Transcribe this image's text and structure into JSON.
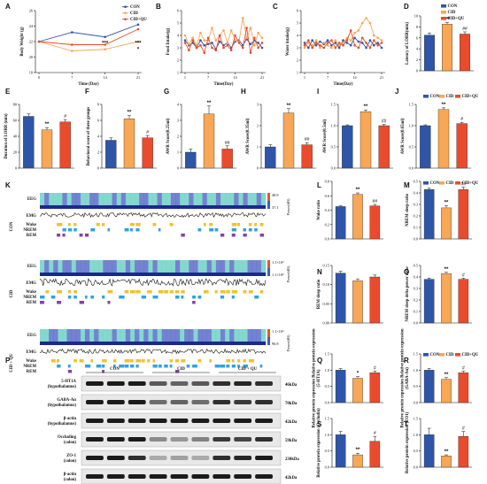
{
  "colors": {
    "CON": "#2e55a7",
    "CID": "#f7a755",
    "CIDQU": "#ea4b2c"
  },
  "legend": [
    "CON",
    "CID",
    "CID+QU"
  ],
  "chart_data": [
    {
      "panel": "A",
      "type": "line",
      "xlabel": "Time (Day)",
      "ylabel": "Body Weight (g)",
      "x": [
        0,
        7,
        14,
        21
      ],
      "xticks": [
        "0",
        "7",
        "14",
        "21"
      ],
      "ylim": [
        18,
        26
      ],
      "yticks": [
        "18",
        "20",
        "22",
        "24",
        "26"
      ],
      "series": [
        {
          "name": "CON",
          "values": [
            22.0,
            23.2,
            22.6,
            24.2
          ]
        },
        {
          "name": "CID",
          "values": [
            22.0,
            20.8,
            21.0,
            22.0
          ]
        },
        {
          "name": "CID+QU",
          "values": [
            22.0,
            21.6,
            21.6,
            23.6
          ]
        }
      ],
      "annotations": [
        {
          "x": 14,
          "text": "***"
        },
        {
          "x": 21,
          "text": "***"
        },
        {
          "x": 21,
          "text": "*"
        }
      ]
    },
    {
      "panel": "B",
      "type": "line",
      "xlabel": "Time(Day)",
      "ylabel": "Food Intake(g)",
      "ylim": [
        1,
        6
      ],
      "yticks": [
        "1",
        "2",
        "3",
        "4",
        "5",
        "6"
      ],
      "xticks": [
        "1",
        "7",
        "14",
        "21"
      ],
      "x": [
        1,
        2,
        3,
        4,
        5,
        6,
        7,
        8,
        9,
        10,
        11,
        12,
        13,
        14,
        15,
        16,
        17,
        18,
        19,
        20,
        21
      ],
      "series": [
        {
          "name": "CON",
          "values": [
            3.6,
            3.2,
            3.4,
            3.0,
            3.6,
            3.2,
            3.3,
            3.4,
            2.9,
            3.5,
            3.2,
            3.4,
            3.0,
            3.5,
            3.6,
            3.2,
            3.7,
            3.3,
            3.6,
            3.4,
            3.0
          ]
        },
        {
          "name": "CID",
          "values": [
            4.0,
            3.3,
            3.8,
            3.2,
            4.2,
            3.6,
            3.6,
            4.6,
            3.6,
            4.0,
            4.4,
            3.4,
            4.4,
            3.6,
            3.5,
            5.4,
            3.8,
            4.6,
            3.2,
            4.2,
            3.8
          ]
        },
        {
          "name": "CID+QU",
          "values": [
            3.4,
            2.8,
            3.6,
            3.0,
            3.2,
            2.6,
            3.8,
            3.0,
            2.8,
            4.0,
            3.0,
            3.2,
            2.8,
            4.0,
            3.4,
            3.0,
            4.6,
            2.6,
            3.8,
            3.0,
            3.4
          ]
        }
      ]
    },
    {
      "panel": "C",
      "type": "line",
      "xlabel": "Time(Day)",
      "ylabel": "Water intake(g)",
      "ylim": [
        1,
        6
      ],
      "yticks": [
        "1",
        "2",
        "3",
        "4",
        "5",
        "6"
      ],
      "xticks": [
        "1",
        "7",
        "14",
        "21"
      ],
      "x": [
        1,
        2,
        3,
        4,
        5,
        6,
        7,
        8,
        9,
        10,
        11,
        12,
        13,
        14,
        15,
        16,
        17,
        18,
        19,
        20,
        21
      ],
      "series": [
        {
          "name": "CON",
          "values": [
            3.4,
            3.0,
            3.6,
            3.2,
            3.5,
            3.3,
            3.6,
            3.2,
            3.4,
            3.0,
            3.6,
            3.4,
            3.2,
            3.8,
            3.5,
            3.4,
            3.0,
            3.6,
            3.2,
            3.4,
            3.0
          ]
        },
        {
          "name": "CID",
          "values": [
            3.0,
            3.4,
            3.2,
            3.6,
            3.0,
            3.4,
            3.2,
            3.0,
            3.6,
            3.2,
            3.4,
            3.8,
            3.6,
            4.2,
            4.4,
            5.0,
            5.4,
            5.0,
            4.0,
            3.8,
            3.6
          ]
        },
        {
          "name": "CID+QU",
          "values": [
            3.2,
            3.6,
            3.0,
            3.4,
            3.2,
            3.0,
            3.4,
            3.6,
            3.0,
            3.4,
            3.2,
            3.6,
            4.4,
            3.2,
            3.0,
            3.8,
            3.4,
            3.0,
            3.6,
            3.2,
            3.4
          ]
        }
      ]
    },
    {
      "panel": "D",
      "type": "bar",
      "ylabel": "Latency of LORR(min)",
      "ylim": [
        0,
        10
      ],
      "yticks": [
        "0",
        "2",
        "4",
        "6",
        "8",
        "10"
      ],
      "categories": [
        "CON",
        "CID",
        "CID+QU"
      ],
      "values": [
        6.5,
        8.5,
        6.7
      ],
      "errors": [
        0.4,
        0.3,
        0.4
      ],
      "sig": [
        "",
        "***",
        "##"
      ]
    },
    {
      "panel": "E",
      "type": "bar",
      "ylabel": "Duration of LORR (min)",
      "ylim": [
        0,
        80
      ],
      "yticks": [
        "0",
        "20",
        "40",
        "60",
        "80"
      ],
      "categories": [
        "CON",
        "CID",
        "CID+QU"
      ],
      "values": [
        65,
        48,
        58
      ],
      "errors": [
        3,
        3,
        3
      ],
      "sig": [
        "",
        "**",
        "#"
      ]
    },
    {
      "panel": "F",
      "type": "bar",
      "ylabel": "Behavioral score of three groups",
      "ylim": [
        0,
        8
      ],
      "yticks": [
        "0",
        "2",
        "4",
        "6",
        "8"
      ],
      "categories": [
        "CON",
        "CID",
        "CID+QU"
      ],
      "values": [
        3.5,
        6.2,
        3.8
      ],
      "errors": [
        0.3,
        0.4,
        0.3
      ],
      "sig": [
        "",
        "**",
        "#"
      ]
    },
    {
      "panel": "G",
      "type": "bar",
      "ylabel": "AWR Score(0.25ml)",
      "ylim": [
        0,
        4
      ],
      "yticks": [
        "0",
        "1",
        "2",
        "3",
        "4"
      ],
      "categories": [
        "CON",
        "CID",
        "CID+QU"
      ],
      "values": [
        1.0,
        3.4,
        1.2
      ],
      "errors": [
        0.2,
        0.5,
        0.2
      ],
      "sig": [
        "",
        "**",
        "##"
      ]
    },
    {
      "panel": "H",
      "type": "bar",
      "ylabel": "AWR Score(0.35ml)",
      "ylim": [
        0,
        3
      ],
      "yticks": [
        "0",
        "1",
        "2",
        "3"
      ],
      "categories": [
        "CON",
        "CID",
        "CID+QU"
      ],
      "values": [
        1.0,
        2.6,
        1.1
      ],
      "errors": [
        0.1,
        0.2,
        0.1
      ],
      "sig": [
        "",
        "**",
        "##"
      ]
    },
    {
      "panel": "I",
      "type": "bar",
      "ylabel": "AWR Score(0.5ml)",
      "ylim": [
        0,
        1.5
      ],
      "yticks": [
        "0.0",
        "0.5",
        "1.0",
        "1.5"
      ],
      "categories": [
        "CON",
        "CID",
        "CID+QU"
      ],
      "values": [
        1.0,
        1.33,
        1.0
      ],
      "errors": [
        0.02,
        0.04,
        0.03
      ],
      "sig": [
        "",
        "**",
        "##"
      ]
    },
    {
      "panel": "J",
      "type": "bar",
      "ylabel": "AWR Score(0.65ml)",
      "ylim": [
        0,
        1.5
      ],
      "yticks": [
        "0.0",
        "0.5",
        "1.0",
        "1.5"
      ],
      "categories": [
        "CON",
        "CID",
        "CID+QU"
      ],
      "values": [
        1.0,
        1.38,
        1.05
      ],
      "errors": [
        0.02,
        0.04,
        0.03
      ],
      "sig": [
        "",
        "**",
        "#"
      ]
    },
    {
      "panel": "L",
      "type": "bar",
      "ylabel": "Wake ratio",
      "ylim": [
        0,
        0.8
      ],
      "yticks": [
        "0.0",
        "0.2",
        "0.4",
        "0.6",
        "0.8"
      ],
      "categories": [
        "CON",
        "CID",
        "CID+QU"
      ],
      "values": [
        0.45,
        0.62,
        0.46
      ],
      "errors": [
        0.01,
        0.02,
        0.02
      ],
      "sig": [
        "",
        "**",
        "##"
      ]
    },
    {
      "panel": "M",
      "type": "bar",
      "ylabel": "NREM sleep ratio",
      "ylim": [
        0,
        0.5
      ],
      "yticks": [
        "0.0",
        "0.1",
        "0.2",
        "0.3",
        "0.4",
        "0.5"
      ],
      "categories": [
        "CON",
        "CID",
        "CID+QU"
      ],
      "values": [
        0.43,
        0.27,
        0.43
      ],
      "errors": [
        0.01,
        0.02,
        0.02
      ],
      "sig": [
        "",
        "**",
        "##"
      ]
    },
    {
      "panel": "N",
      "type": "bar",
      "ylabel": "REM sleep ratio",
      "ylim": [
        0,
        0.15
      ],
      "yticks": [
        "0.00",
        "0.05",
        "0.10",
        "0.15"
      ],
      "categories": [
        "CON",
        "CID",
        "CID+QU"
      ],
      "values": [
        0.13,
        0.11,
        0.12
      ],
      "errors": [
        0.005,
        0.005,
        0.005
      ],
      "sig": [
        "",
        "",
        ""
      ]
    },
    {
      "panel": "O",
      "type": "bar",
      "ylabel": "NREM sleep delta power ratio",
      "ylim": [
        0,
        0.5
      ],
      "yticks": [
        "0.0",
        "0.1",
        "0.2",
        "0.3",
        "0.4",
        "0.5"
      ],
      "categories": [
        "CON",
        "CID",
        "CID+QU"
      ],
      "values": [
        0.38,
        0.43,
        0.38
      ],
      "errors": [
        0.01,
        0.01,
        0.01
      ],
      "sig": [
        "",
        "**",
        "#"
      ]
    },
    {
      "panel": "Q",
      "type": "bar",
      "ylabel": "Relative protein expression Relative protein expression (5-HT1A)",
      "ylim": [
        0,
        1.5
      ],
      "yticks": [
        "0.0",
        "0.5",
        "1.0",
        "1.5"
      ],
      "categories": [
        "CON",
        "CID",
        "CID+QU"
      ],
      "values": [
        1.0,
        0.75,
        0.92
      ],
      "errors": [
        0.05,
        0.05,
        0.05
      ],
      "sig": [
        "",
        "*",
        "#"
      ]
    },
    {
      "panel": "R",
      "type": "bar",
      "ylabel": "Relative protein expression Relative protein expression (GABA-Aα)",
      "ylim": [
        0,
        1.5
      ],
      "yticks": [
        "0.0",
        "0.5",
        "1.0",
        "1.5"
      ],
      "categories": [
        "CON",
        "CID",
        "CID+QU"
      ],
      "values": [
        1.0,
        0.72,
        0.92
      ],
      "errors": [
        0.05,
        0.05,
        0.05
      ],
      "sig": [
        "",
        "**",
        "#"
      ]
    },
    {
      "panel": "S",
      "type": "bar",
      "ylabel": "Relative protein expression (Occludin)",
      "ylim": [
        0,
        1.5
      ],
      "yticks": [
        "0.0",
        "0.5",
        "1.0",
        "1.5"
      ],
      "categories": [
        "CON",
        "CID",
        "CID+QU"
      ],
      "values": [
        1.0,
        0.38,
        0.8
      ],
      "errors": [
        0.1,
        0.05,
        0.15
      ],
      "sig": [
        "",
        "**",
        "#"
      ]
    },
    {
      "panel": "T",
      "type": "bar",
      "ylabel": "Relative protein expression (ZO1)",
      "ylim": [
        0,
        1.5
      ],
      "yticks": [
        "0.0",
        "0.5",
        "1.0",
        "1.5"
      ],
      "categories": [
        "CON",
        "CID",
        "CID+QU"
      ],
      "values": [
        1.0,
        0.35,
        0.95
      ],
      "errors": [
        0.2,
        0.03,
        0.15
      ],
      "sig": [
        "",
        "**",
        "#"
      ]
    }
  ],
  "panel_k": {
    "groups": [
      "CON",
      "CID",
      "CID + QU"
    ],
    "track_labels": [
      "EEG",
      "EMG",
      "Wake",
      "NREM",
      "REM"
    ],
    "power_label": "Power(dB)",
    "scales": [
      [
        "48.8",
        "37.1"
      ],
      [
        "1.1×10²",
        "1.1×10²"
      ],
      [
        "1.1×10²",
        "96.8"
      ]
    ]
  },
  "panel_p": {
    "groups": [
      "CON",
      "CID",
      "CID + QU"
    ],
    "rows": [
      {
        "label": "5-HT1A",
        "tissue": "(hypothalamus)",
        "kda": "46kDa"
      },
      {
        "label": "GABA-Aα",
        "tissue": "(hypothalamus)",
        "kda": "70kDa"
      },
      {
        "label": "β-actin",
        "tissue": "(hypothalamus)",
        "kda": "42kDa"
      },
      {
        "label": "Occluding",
        "tissue": "(colon)",
        "kda": "59kDa"
      },
      {
        "label": "ZO-1",
        "tissue": "(colon)",
        "kda": "230kDa"
      },
      {
        "label": "β-actin",
        "tissue": "(colon)",
        "kda": "42kDa"
      }
    ]
  }
}
